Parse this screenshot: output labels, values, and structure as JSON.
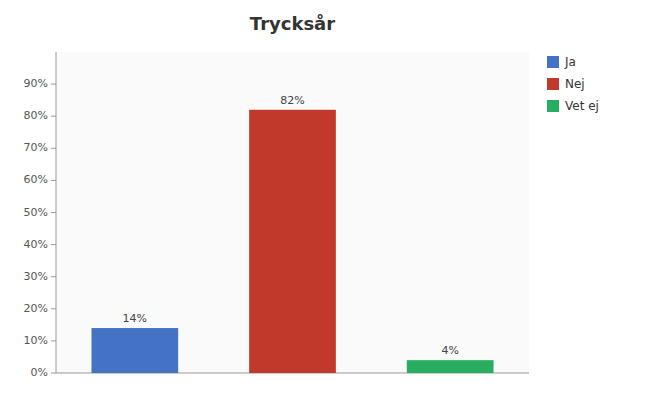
{
  "chart_data": {
    "type": "bar",
    "title": "Trycksår",
    "categories": [
      "Ja",
      "Nej",
      "Vet ej"
    ],
    "values": [
      14,
      82,
      4
    ],
    "value_labels": [
      "14%",
      "82%",
      "4%"
    ],
    "colors": [
      "#4472c4",
      "#c0392b",
      "#27ae60"
    ],
    "ylim": [
      0,
      100
    ],
    "yticks": [
      {
        "value": 0,
        "label": "0%"
      },
      {
        "value": 10,
        "label": "10%"
      },
      {
        "value": 20,
        "label": "20%"
      },
      {
        "value": 30,
        "label": "30%"
      },
      {
        "value": 40,
        "label": "40%"
      },
      {
        "value": 50,
        "label": "50%"
      },
      {
        "value": 60,
        "label": "60%"
      },
      {
        "value": 70,
        "label": "70%"
      },
      {
        "value": 80,
        "label": "80%"
      },
      {
        "value": 90,
        "label": "90%"
      }
    ],
    "grid": false,
    "data_labels": true,
    "tick_labels": "y",
    "legend": "right"
  }
}
